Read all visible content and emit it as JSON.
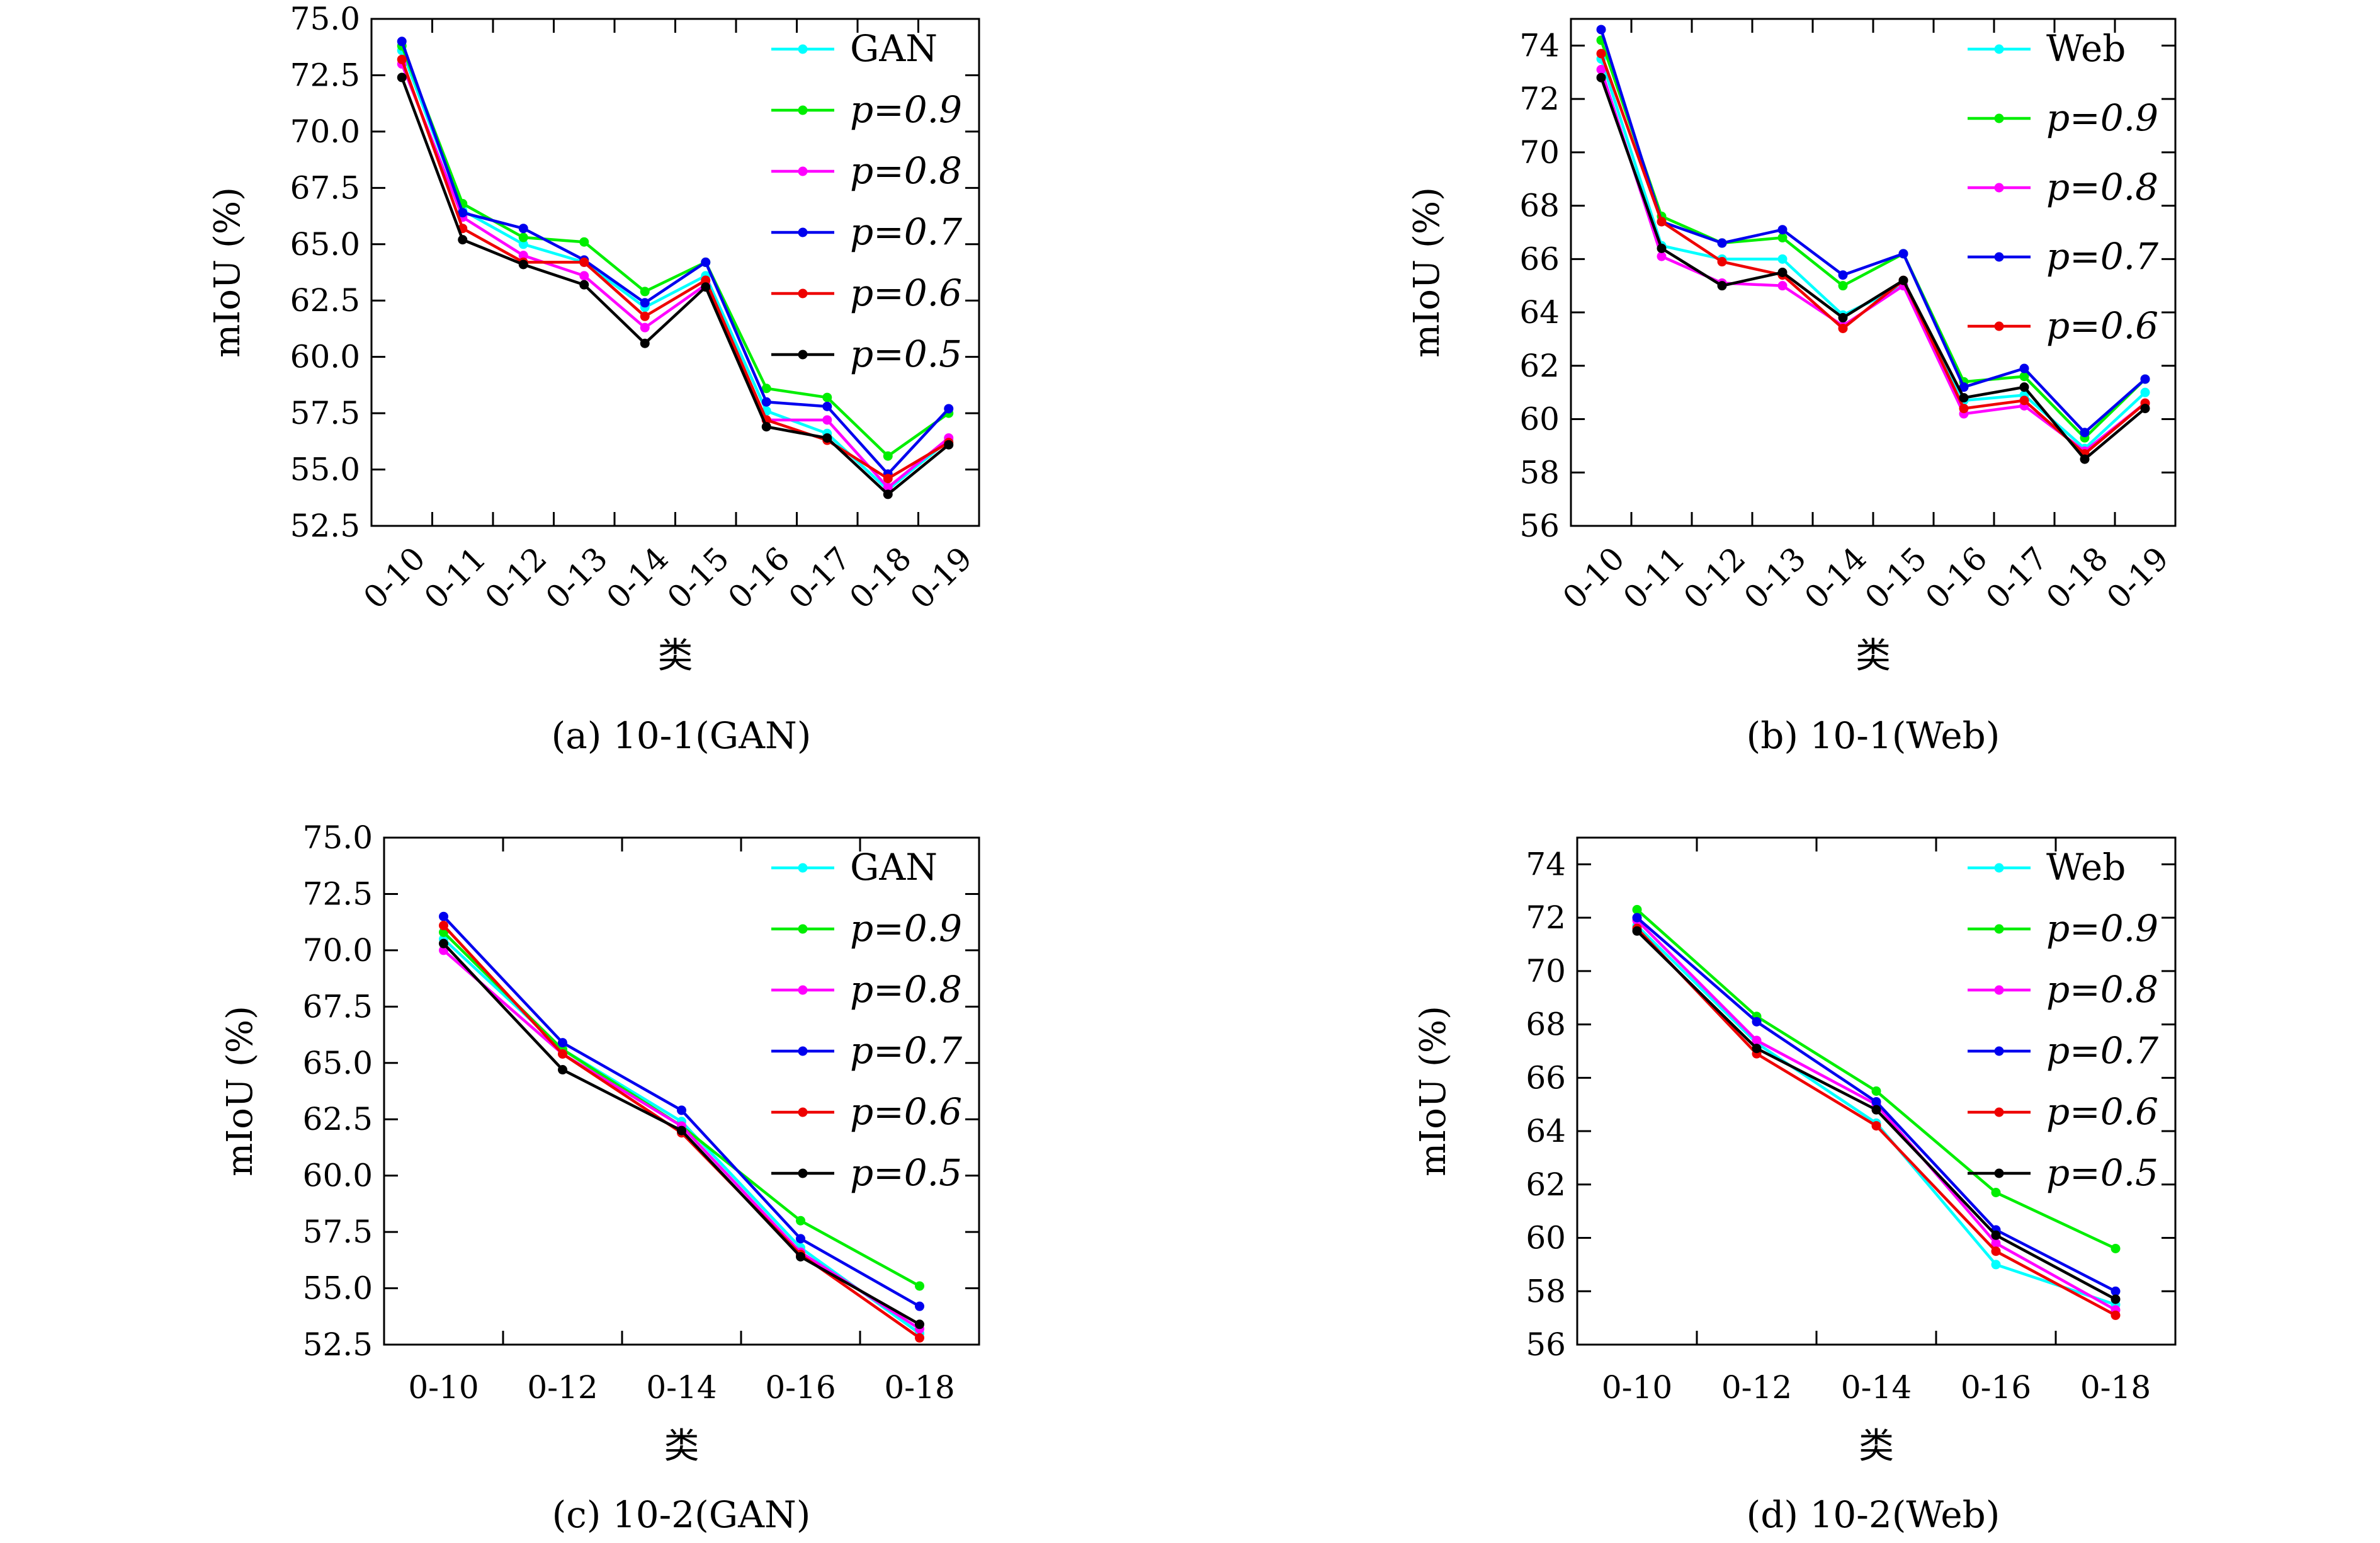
{
  "panels": [
    {
      "caption": "(a) 10-1(GAN)",
      "chart_data": {
        "type": "line",
        "ylabel": "mIoU (%)",
        "xlabel": "类",
        "categories": [
          "0-10",
          "0-11",
          "0-12",
          "0-13",
          "0-14",
          "0-15",
          "0-16",
          "0-17",
          "0-18",
          "0-19"
        ],
        "tick_rotation": "diagonal",
        "ylim": [
          52.5,
          75.0
        ],
        "yticks": [
          "52.5",
          "55.0",
          "57.5",
          "60.0",
          "62.5",
          "65.0",
          "67.5",
          "70.0",
          "72.5",
          "75.0"
        ],
        "ytick_values": [
          52.5,
          55.0,
          57.5,
          60.0,
          62.5,
          65.0,
          67.5,
          70.0,
          72.5,
          75.0
        ],
        "legend_position": "top-right",
        "series": [
          {
            "name": "GAN",
            "color": "#00ffff",
            "values": [
              73.6,
              66.5,
              65.0,
              64.2,
              62.2,
              63.6,
              57.6,
              56.6,
              54.1,
              56.3
            ]
          },
          {
            "name": "p=0.9",
            "color": "#00ee00",
            "values": [
              73.8,
              66.8,
              65.3,
              65.1,
              62.9,
              64.2,
              58.6,
              58.2,
              55.6,
              57.5
            ]
          },
          {
            "name": "p=0.8",
            "color": "#ff00ff",
            "values": [
              73.0,
              66.2,
              64.5,
              63.6,
              61.3,
              63.2,
              57.2,
              57.2,
              54.2,
              56.4
            ]
          },
          {
            "name": "p=0.7",
            "color": "#0000ee",
            "values": [
              74.0,
              66.4,
              65.7,
              64.3,
              62.4,
              64.2,
              58.0,
              57.8,
              54.8,
              57.7
            ]
          },
          {
            "name": "p=0.6",
            "color": "#ee0000",
            "values": [
              73.2,
              65.7,
              64.2,
              64.2,
              61.8,
              63.4,
              57.2,
              56.3,
              54.6,
              56.2
            ]
          },
          {
            "name": "p=0.5",
            "color": "#000000",
            "values": [
              72.4,
              65.2,
              64.1,
              63.2,
              60.6,
              63.1,
              56.9,
              56.4,
              53.9,
              56.1
            ]
          }
        ]
      }
    },
    {
      "caption": "(b) 10-1(Web)",
      "chart_data": {
        "type": "line",
        "ylabel": "mIoU (%)",
        "xlabel": "类",
        "categories": [
          "0-10",
          "0-11",
          "0-12",
          "0-13",
          "0-14",
          "0-15",
          "0-16",
          "0-17",
          "0-18",
          "0-19"
        ],
        "tick_rotation": "diagonal",
        "ylim": [
          56,
          75
        ],
        "yticks": [
          "56",
          "58",
          "60",
          "62",
          "64",
          "66",
          "68",
          "70",
          "72",
          "74"
        ],
        "ytick_values": [
          56,
          58,
          60,
          62,
          64,
          66,
          68,
          70,
          72,
          74
        ],
        "legend_position": "top-right",
        "series": [
          {
            "name": "Web",
            "color": "#00ffff",
            "values": [
              73.5,
              66.5,
              66.0,
              66.0,
              63.9,
              65.0,
              60.7,
              60.9,
              58.9,
              61.0
            ]
          },
          {
            "name": "p=0.9",
            "color": "#00ee00",
            "values": [
              74.2,
              67.6,
              66.6,
              66.8,
              65.0,
              66.2,
              61.4,
              61.6,
              59.3,
              61.5
            ]
          },
          {
            "name": "p=0.8",
            "color": "#ff00ff",
            "values": [
              73.1,
              66.1,
              65.1,
              65.0,
              63.5,
              65.0,
              60.2,
              60.5,
              58.8,
              60.6
            ]
          },
          {
            "name": "p=0.7",
            "color": "#0000ee",
            "values": [
              74.6,
              67.4,
              66.6,
              67.1,
              65.4,
              66.2,
              61.2,
              61.9,
              59.5,
              61.5
            ]
          },
          {
            "name": "p=0.6",
            "color": "#ee0000",
            "values": [
              73.7,
              67.4,
              65.9,
              65.4,
              63.4,
              65.2,
              60.4,
              60.7,
              58.7,
              60.6
            ]
          },
          {
            "name": "",
            "color": "#000000",
            "values": [
              72.8,
              66.4,
              65.0,
              65.5,
              63.8,
              65.2,
              60.8,
              61.2,
              58.5,
              60.4
            ]
          }
        ]
      }
    },
    {
      "caption": "(c) 10-2(GAN)",
      "chart_data": {
        "type": "line",
        "ylabel": "mIoU (%)",
        "xlabel": "类",
        "categories": [
          "0-10",
          "0-12",
          "0-14",
          "0-16",
          "0-18"
        ],
        "tick_rotation": "horizontal",
        "ylim": [
          52.5,
          75.0
        ],
        "yticks": [
          "52.5",
          "55.0",
          "57.5",
          "60.0",
          "62.5",
          "65.0",
          "67.5",
          "70.0",
          "72.5",
          "75.0"
        ],
        "ytick_values": [
          52.5,
          55.0,
          57.5,
          60.0,
          62.5,
          65.0,
          67.5,
          70.0,
          72.5,
          75.0
        ],
        "legend_position": "top-right",
        "series": [
          {
            "name": "GAN",
            "color": "#00ffff",
            "values": [
              70.5,
              65.6,
              62.4,
              56.8,
              53.0
            ]
          },
          {
            "name": "p=0.9",
            "color": "#00ee00",
            "values": [
              70.8,
              65.6,
              62.2,
              58.0,
              55.1
            ]
          },
          {
            "name": "p=0.8",
            "color": "#ff00ff",
            "values": [
              70.0,
              65.4,
              62.2,
              56.6,
              53.2
            ]
          },
          {
            "name": "p=0.7",
            "color": "#0000ee",
            "values": [
              71.5,
              65.9,
              62.9,
              57.2,
              54.2
            ]
          },
          {
            "name": "p=0.6",
            "color": "#ee0000",
            "values": [
              71.1,
              65.4,
              61.9,
              56.5,
              52.8
            ]
          },
          {
            "name": "p=0.5",
            "color": "#000000",
            "values": [
              70.3,
              64.7,
              62.0,
              56.4,
              53.4
            ]
          }
        ]
      }
    },
    {
      "caption": "(d) 10-2(Web)",
      "chart_data": {
        "type": "line",
        "ylabel": "mIoU (%)",
        "xlabel": "类",
        "categories": [
          "0-10",
          "0-12",
          "0-14",
          "0-16",
          "0-18"
        ],
        "tick_rotation": "horizontal",
        "ylim": [
          56,
          75
        ],
        "yticks": [
          "56",
          "58",
          "60",
          "62",
          "64",
          "66",
          "68",
          "70",
          "72",
          "74"
        ],
        "ytick_values": [
          56,
          58,
          60,
          62,
          64,
          66,
          68,
          70,
          72,
          74
        ],
        "legend_position": "top-right",
        "series": [
          {
            "name": "Web",
            "color": "#00ffff",
            "values": [
              71.7,
              67.3,
              64.3,
              59.0,
              57.5
            ]
          },
          {
            "name": "p=0.9",
            "color": "#00ee00",
            "values": [
              72.3,
              68.3,
              65.5,
              61.7,
              59.6
            ]
          },
          {
            "name": "p=0.8",
            "color": "#ff00ff",
            "values": [
              71.9,
              67.4,
              65.0,
              59.8,
              57.3
            ]
          },
          {
            "name": "p=0.7",
            "color": "#0000ee",
            "values": [
              72.0,
              68.1,
              65.1,
              60.3,
              58.0
            ]
          },
          {
            "name": "p=0.6",
            "color": "#ee0000",
            "values": [
              71.6,
              66.9,
              64.2,
              59.5,
              57.1
            ]
          },
          {
            "name": "p=0.5",
            "color": "#000000",
            "values": [
              71.5,
              67.1,
              64.8,
              60.1,
              57.7
            ]
          }
        ]
      }
    }
  ]
}
